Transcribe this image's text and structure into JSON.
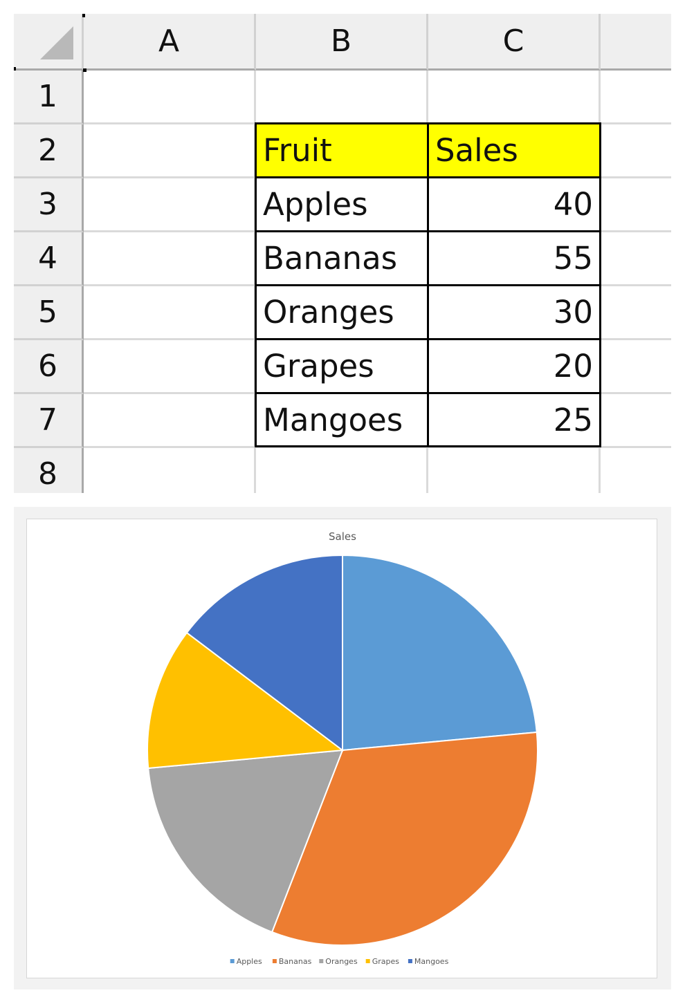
{
  "sheet": {
    "columns": [
      "A",
      "B",
      "C"
    ],
    "rows": [
      "1",
      "2",
      "3",
      "4",
      "5",
      "6",
      "7",
      "8"
    ],
    "table": {
      "header": [
        "Fruit",
        "Sales"
      ],
      "rows": [
        [
          "Apples",
          "40"
        ],
        [
          "Bananas",
          "55"
        ],
        [
          "Oranges",
          "30"
        ],
        [
          "Grapes",
          "20"
        ],
        [
          "Mangoes",
          "25"
        ]
      ],
      "header_fill": "#ffff00"
    }
  },
  "chart_data": {
    "type": "pie",
    "title": "Sales",
    "categories": [
      "Apples",
      "Bananas",
      "Oranges",
      "Grapes",
      "Mangoes"
    ],
    "values": [
      40,
      55,
      30,
      20,
      25
    ],
    "colors": [
      "#5b9bd5",
      "#ed7d31",
      "#a5a5a5",
      "#ffc000",
      "#4472c4"
    ],
    "legend": "bottom",
    "start_angle": "12 o'clock",
    "direction": "clockwise"
  }
}
